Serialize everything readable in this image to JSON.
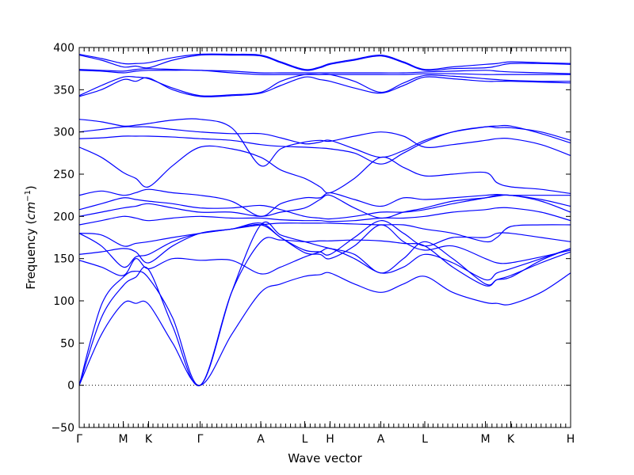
{
  "chart_data": {
    "type": "line",
    "title": "",
    "xlabel": "Wave vector",
    "ylabel_text": "Frequency (",
    "ylabel_unit": "cm",
    "ylabel_exp": "−1",
    "ylabel_close": ")",
    "ylim": [
      -50,
      400
    ],
    "yticks": [
      -50,
      0,
      50,
      100,
      150,
      200,
      250,
      300,
      350,
      400
    ],
    "ytick_labels": [
      "−50",
      "0",
      "50",
      "100",
      "150",
      "200",
      "250",
      "300",
      "350",
      "400"
    ],
    "xlim": [
      0,
      1
    ],
    "kpoints": [
      {
        "label": "Γ",
        "x": 0.0
      },
      {
        "label": "M",
        "x": 0.0895
      },
      {
        "label": "K",
        "x": 0.1411
      },
      {
        "label": "Γ",
        "x": 0.246
      },
      {
        "label": "A",
        "x": 0.3694
      },
      {
        "label": "L",
        "x": 0.4589
      },
      {
        "label": "H",
        "x": 0.5105
      },
      {
        "label": "A",
        "x": 0.6137
      },
      {
        "label": "L",
        "x": 0.7032
      },
      {
        "label": "M",
        "x": 0.8266
      },
      {
        "label": "K",
        "x": 0.8782
      },
      {
        "label": "H",
        "x": 1.0
      }
    ],
    "zero_line": true,
    "line_color": "#0000ff",
    "series": [
      {
        "x": [
          0,
          0.045,
          0.0895,
          0.115,
          0.1411,
          0.19,
          0.246,
          0.31,
          0.3694,
          0.41,
          0.4589,
          0.49,
          0.5105,
          0.56,
          0.6137,
          0.66,
          0.7032,
          0.76,
          0.8266,
          0.85,
          0.8782,
          0.94,
          1.0
        ],
        "y": [
          0,
          60,
          97,
          97,
          96,
          50,
          0,
          60,
          110,
          120,
          129,
          131,
          133,
          120,
          110,
          120,
          129,
          110,
          98,
          97,
          96,
          110,
          133
        ]
      },
      {
        "x": [
          0,
          0.045,
          0.0895,
          0.115,
          0.1411,
          0.19,
          0.246,
          0.31,
          0.3694,
          0.41,
          0.4589,
          0.49,
          0.5105,
          0.56,
          0.6137,
          0.66,
          0.7032,
          0.76,
          0.8266,
          0.85,
          0.8782,
          0.94,
          1.0
        ],
        "y": [
          0,
          80,
          118,
          128,
          137,
          70,
          0,
          110,
          170,
          172,
          170,
          171,
          171,
          172,
          171,
          168,
          165,
          140,
          118,
          125,
          130,
          145,
          158
        ]
      },
      {
        "x": [
          0,
          0.045,
          0.0895,
          0.115,
          0.1411,
          0.19,
          0.246,
          0.31,
          0.3694,
          0.41,
          0.4589,
          0.49,
          0.5105,
          0.56,
          0.6137,
          0.66,
          0.7032,
          0.76,
          0.8266,
          0.85,
          0.8782,
          0.94,
          1.0
        ],
        "y": [
          0,
          95,
          128,
          135,
          127,
          80,
          0,
          110,
          190,
          178,
          170,
          165,
          162,
          155,
          133,
          150,
          170,
          150,
          120,
          125,
          128,
          148,
          162
        ]
      },
      {
        "x": [
          0,
          0.045,
          0.0895,
          0.115,
          0.1411,
          0.19,
          0.246,
          0.31,
          0.3694,
          0.41,
          0.4589,
          0.49,
          0.5105,
          0.56,
          0.6137,
          0.66,
          0.7032,
          0.76,
          0.8266,
          0.85,
          0.8782,
          0.94,
          1.0
        ],
        "y": [
          148,
          140,
          130,
          150,
          138,
          150,
          148,
          148,
          132,
          140,
          152,
          158,
          162,
          150,
          133,
          140,
          155,
          145,
          125,
          133,
          138,
          150,
          162
        ]
      },
      {
        "x": [
          0,
          0.045,
          0.0895,
          0.115,
          0.1411,
          0.19,
          0.246,
          0.31,
          0.3694,
          0.41,
          0.4589,
          0.49,
          0.5105,
          0.56,
          0.6137,
          0.66,
          0.7032,
          0.76,
          0.8266,
          0.85,
          0.8782,
          0.94,
          1.0
        ],
        "y": [
          155,
          158,
          162,
          158,
          145,
          165,
          180,
          185,
          190,
          175,
          157,
          155,
          150,
          165,
          190,
          170,
          160,
          165,
          150,
          145,
          145,
          152,
          160
        ]
      },
      {
        "x": [
          0,
          0.045,
          0.0895,
          0.115,
          0.1411,
          0.19,
          0.246,
          0.31,
          0.3694,
          0.41,
          0.4589,
          0.49,
          0.5105,
          0.56,
          0.6137,
          0.66,
          0.7032,
          0.76,
          0.8266,
          0.85,
          0.8782,
          0.94,
          1.0
        ],
        "y": [
          180,
          165,
          140,
          152,
          155,
          170,
          180,
          185,
          192,
          175,
          160,
          158,
          155,
          175,
          195,
          180,
          165,
          175,
          175,
          180,
          180,
          175,
          170
        ]
      },
      {
        "x": [
          0,
          0.045,
          0.0895,
          0.115,
          0.1411,
          0.19,
          0.246,
          0.31,
          0.3694,
          0.41,
          0.4589,
          0.49,
          0.5105,
          0.56,
          0.6137,
          0.66,
          0.7032,
          0.76,
          0.8266,
          0.85,
          0.8782,
          0.94,
          1.0
        ],
        "y": [
          180,
          178,
          165,
          168,
          170,
          175,
          180,
          185,
          190,
          192,
          192,
          192,
          192,
          191,
          190,
          190,
          185,
          180,
          170,
          175,
          188,
          190,
          190
        ]
      },
      {
        "x": [
          0,
          0.045,
          0.0895,
          0.115,
          0.1411,
          0.19,
          0.246,
          0.31,
          0.3694,
          0.41,
          0.4589,
          0.49,
          0.5105,
          0.56,
          0.6137,
          0.66,
          0.7032,
          0.76,
          0.8266,
          0.85,
          0.8782,
          0.94,
          1.0
        ],
        "y": [
          190,
          195,
          200,
          198,
          195,
          198,
          200,
          198,
          198,
          196,
          195,
          195,
          194,
          195,
          198,
          198,
          200,
          205,
          208,
          210,
          210,
          205,
          195
        ]
      },
      {
        "x": [
          0,
          0.045,
          0.0895,
          0.115,
          0.1411,
          0.19,
          0.246,
          0.31,
          0.3694,
          0.41,
          0.4589,
          0.49,
          0.5105,
          0.56,
          0.6137,
          0.66,
          0.7032,
          0.76,
          0.8266,
          0.85,
          0.8782,
          0.94,
          1.0
        ],
        "y": [
          200,
          205,
          210,
          212,
          215,
          210,
          205,
          205,
          200,
          205,
          210,
          220,
          225,
          210,
          198,
          205,
          210,
          218,
          222,
          224,
          225,
          218,
          205
        ]
      },
      {
        "x": [
          0,
          0.045,
          0.0895,
          0.115,
          0.1411,
          0.19,
          0.246,
          0.31,
          0.3694,
          0.41,
          0.4589,
          0.49,
          0.5105,
          0.56,
          0.6137,
          0.66,
          0.7032,
          0.76,
          0.8266,
          0.85,
          0.8782,
          0.94,
          1.0
        ],
        "y": [
          208,
          215,
          222,
          220,
          218,
          215,
          210,
          210,
          213,
          208,
          200,
          198,
          197,
          200,
          205,
          205,
          208,
          215,
          222,
          225,
          225,
          220,
          212
        ]
      },
      {
        "x": [
          0,
          0.045,
          0.0895,
          0.115,
          0.1411,
          0.19,
          0.246,
          0.31,
          0.3694,
          0.41,
          0.4589,
          0.49,
          0.5105,
          0.56,
          0.6137,
          0.66,
          0.7032,
          0.76,
          0.8266,
          0.85,
          0.8782,
          0.94,
          1.0
        ],
        "y": [
          225,
          230,
          225,
          228,
          232,
          228,
          225,
          218,
          200,
          215,
          222,
          222,
          228,
          220,
          212,
          222,
          220,
          222,
          225,
          226,
          225,
          225,
          225
        ]
      },
      {
        "x": [
          0,
          0.045,
          0.0895,
          0.115,
          0.1411,
          0.19,
          0.246,
          0.31,
          0.3694,
          0.41,
          0.4589,
          0.49,
          0.5105,
          0.56,
          0.6137,
          0.66,
          0.7032,
          0.76,
          0.8266,
          0.85,
          0.8782,
          0.94,
          1.0
        ],
        "y": [
          282,
          270,
          252,
          245,
          235,
          260,
          282,
          280,
          270,
          255,
          245,
          235,
          228,
          245,
          270,
          258,
          248,
          250,
          252,
          240,
          235,
          232,
          227
        ]
      },
      {
        "x": [
          0,
          0.045,
          0.0895,
          0.115,
          0.1411,
          0.19,
          0.246,
          0.31,
          0.3694,
          0.41,
          0.4589,
          0.49,
          0.5105,
          0.56,
          0.6137,
          0.66,
          0.7032,
          0.76,
          0.8266,
          0.85,
          0.8782,
          0.94,
          1.0
        ],
        "y": [
          292,
          293,
          295,
          295,
          295,
          294,
          292,
          290,
          285,
          283,
          282,
          281,
          280,
          275,
          262,
          275,
          288,
          300,
          306,
          305,
          305,
          300,
          290
        ]
      },
      {
        "x": [
          0,
          0.045,
          0.0895,
          0.115,
          0.1411,
          0.19,
          0.246,
          0.31,
          0.3694,
          0.41,
          0.4589,
          0.49,
          0.5105,
          0.56,
          0.6137,
          0.66,
          0.7032,
          0.76,
          0.8266,
          0.85,
          0.8782,
          0.94,
          1.0
        ],
        "y": [
          300,
          303,
          306,
          306,
          306,
          303,
          300,
          298,
          298,
          293,
          286,
          288,
          290,
          280,
          270,
          278,
          290,
          300,
          306,
          307,
          307,
          298,
          287
        ]
      },
      {
        "x": [
          0,
          0.045,
          0.0895,
          0.115,
          0.1411,
          0.19,
          0.246,
          0.31,
          0.3694,
          0.41,
          0.4589,
          0.49,
          0.5105,
          0.56,
          0.6137,
          0.66,
          0.7032,
          0.76,
          0.8266,
          0.85,
          0.8782,
          0.94,
          1.0
        ],
        "y": [
          315,
          312,
          307,
          308,
          310,
          314,
          315,
          305,
          260,
          280,
          288,
          290,
          289,
          295,
          300,
          295,
          282,
          285,
          290,
          292,
          292,
          285,
          272
        ]
      },
      {
        "x": [
          0,
          0.045,
          0.0895,
          0.115,
          0.1411,
          0.19,
          0.246,
          0.31,
          0.3694,
          0.41,
          0.4589,
          0.49,
          0.5105,
          0.56,
          0.6137,
          0.66,
          0.7032,
          0.76,
          0.8266,
          0.85,
          0.8782,
          0.94,
          1.0
        ],
        "y": [
          342,
          350,
          362,
          360,
          364,
          350,
          342,
          343,
          346,
          355,
          365,
          362,
          360,
          352,
          346,
          355,
          365,
          363,
          360,
          360,
          360,
          359,
          358
        ]
      },
      {
        "x": [
          0,
          0.045,
          0.0895,
          0.115,
          0.1411,
          0.19,
          0.246,
          0.31,
          0.3694,
          0.41,
          0.4589,
          0.49,
          0.5105,
          0.56,
          0.6137,
          0.66,
          0.7032,
          0.76,
          0.8266,
          0.85,
          0.8782,
          0.94,
          1.0
        ],
        "y": [
          343,
          355,
          365,
          365,
          363,
          352,
          343,
          344,
          347,
          360,
          368,
          368,
          368,
          360,
          347,
          358,
          367,
          366,
          363,
          362,
          361,
          360,
          360
        ]
      },
      {
        "x": [
          0,
          0.045,
          0.0895,
          0.115,
          0.1411,
          0.19,
          0.246,
          0.31,
          0.3694,
          0.41,
          0.4589,
          0.49,
          0.5105,
          0.56,
          0.6137,
          0.66,
          0.7032,
          0.76,
          0.8266,
          0.85,
          0.8782,
          0.94,
          1.0
        ],
        "y": [
          373,
          372,
          370,
          372,
          373,
          373,
          373,
          370,
          368,
          368,
          368,
          368,
          368,
          368,
          368,
          368,
          369,
          369,
          368,
          368,
          368,
          368,
          368
        ]
      },
      {
        "x": [
          0,
          0.045,
          0.0895,
          0.115,
          0.1411,
          0.19,
          0.246,
          0.31,
          0.3694,
          0.41,
          0.4589,
          0.49,
          0.5105,
          0.56,
          0.6137,
          0.66,
          0.7032,
          0.76,
          0.8266,
          0.85,
          0.8782,
          0.94,
          1.0
        ],
        "y": [
          374,
          373,
          372,
          374,
          375,
          374,
          373,
          372,
          370,
          370,
          370,
          370,
          370,
          370,
          370,
          370,
          371,
          372,
          373,
          372,
          371,
          370,
          369
        ]
      },
      {
        "x": [
          0,
          0.045,
          0.0895,
          0.115,
          0.1411,
          0.19,
          0.246,
          0.31,
          0.3694,
          0.41,
          0.4589,
          0.49,
          0.5105,
          0.56,
          0.6137,
          0.66,
          0.7032,
          0.76,
          0.8266,
          0.85,
          0.8782,
          0.94,
          1.0
        ],
        "y": [
          391,
          385,
          377,
          378,
          376,
          385,
          391,
          391,
          390,
          382,
          373,
          376,
          380,
          385,
          390,
          382,
          373,
          375,
          376,
          378,
          381,
          381,
          380
        ]
      },
      {
        "x": [
          0,
          0.045,
          0.0895,
          0.115,
          0.1411,
          0.19,
          0.246,
          0.31,
          0.3694,
          0.41,
          0.4589,
          0.49,
          0.5105,
          0.56,
          0.6137,
          0.66,
          0.7032,
          0.76,
          0.8266,
          0.85,
          0.8782,
          0.94,
          1.0
        ],
        "y": [
          392,
          387,
          381,
          381,
          382,
          388,
          392,
          392,
          391,
          383,
          374,
          377,
          381,
          386,
          391,
          383,
          374,
          377,
          380,
          381,
          383,
          382,
          381
        ]
      }
    ]
  }
}
